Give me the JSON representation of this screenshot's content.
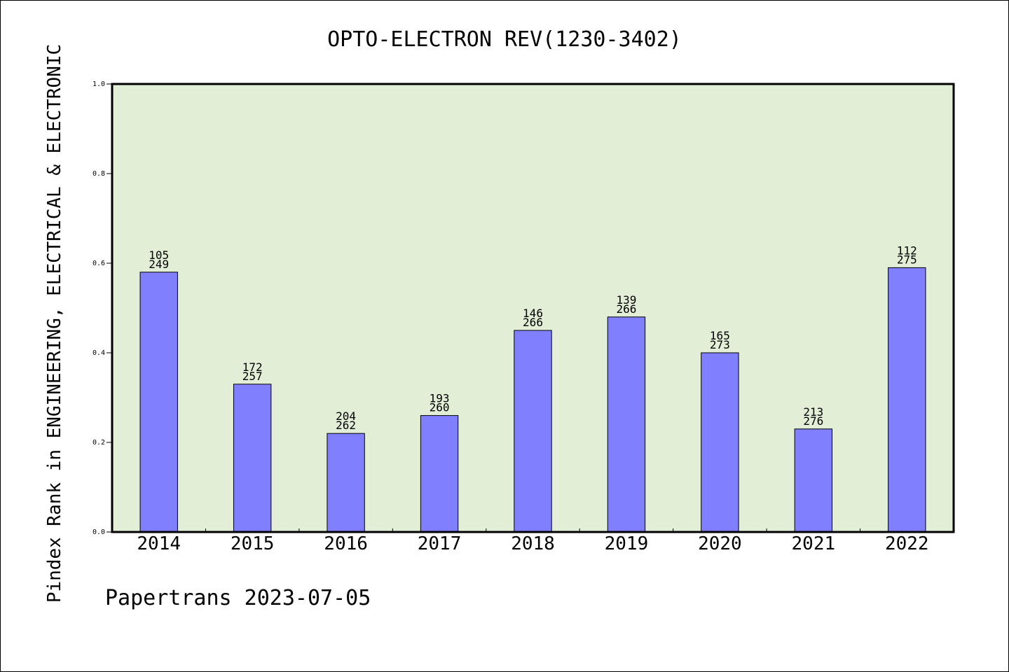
{
  "chart_data": {
    "type": "bar",
    "title": "OPTO-ELECTRON REV(1230-3402)",
    "xlabel": "",
    "ylabel": "Pindex Rank in ENGINEERING, ELECTRICAL & ELECTRONIC",
    "categories": [
      "2014",
      "2015",
      "2016",
      "2017",
      "2018",
      "2019",
      "2020",
      "2021",
      "2022"
    ],
    "values": [
      0.58,
      0.33,
      0.22,
      0.26,
      0.45,
      0.48,
      0.4,
      0.23,
      0.59
    ],
    "rank_labels": [
      "105",
      "172",
      "204",
      "193",
      "146",
      "139",
      "165",
      "213",
      "112"
    ],
    "total_labels": [
      "249",
      "257",
      "262",
      "260",
      "266",
      "266",
      "273",
      "276",
      "275"
    ],
    "ylim": [
      0,
      1.0
    ],
    "yticks": [
      "0.0",
      "0.2",
      "0.4",
      "0.6",
      "0.8",
      "1.0"
    ],
    "grid": false,
    "legend": "none"
  },
  "footer": "Papertrans 2023-07-05",
  "colors": {
    "bar": "#8080ff",
    "plot_background": "#e2efd6",
    "axis": "#000000"
  }
}
